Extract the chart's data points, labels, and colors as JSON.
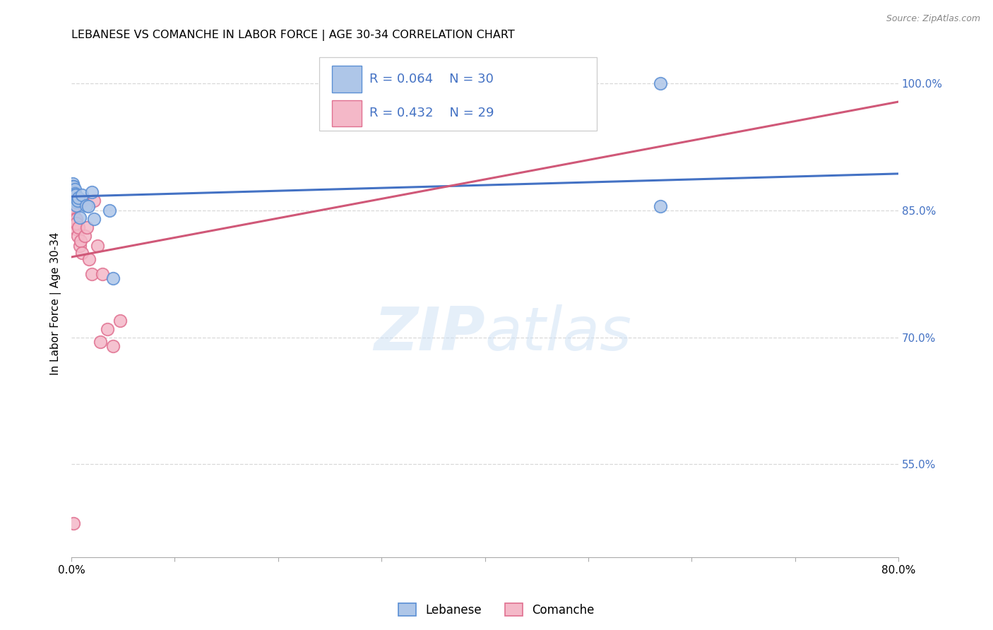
{
  "title": "LEBANESE VS COMANCHE IN LABOR FORCE | AGE 30-34 CORRELATION CHART",
  "source": "Source: ZipAtlas.com",
  "ylabel": "In Labor Force | Age 30-34",
  "xlim": [
    0.0,
    0.8
  ],
  "ylim": [
    0.44,
    1.04
  ],
  "xticks": [
    0.0,
    0.1,
    0.2,
    0.3,
    0.4,
    0.5,
    0.6,
    0.7,
    0.8
  ],
  "xticklabels": [
    "0.0%",
    "",
    "",
    "",
    "",
    "",
    "",
    "",
    "80.0%"
  ],
  "ytick_positions": [
    0.55,
    0.7,
    0.85,
    1.0
  ],
  "ytick_labels": [
    "55.0%",
    "70.0%",
    "85.0%",
    "100.0%"
  ],
  "legend_R_blue": "R = 0.064",
  "legend_N_blue": "N = 30",
  "legend_R_pink": "R = 0.432",
  "legend_N_pink": "N = 29",
  "blue_dot_color": "#aec6e8",
  "blue_edge_color": "#5b8fd4",
  "pink_dot_color": "#f4b8c8",
  "pink_edge_color": "#e07090",
  "blue_line_color": "#4472C4",
  "pink_line_color": "#d05878",
  "grid_color": "#d8d8d8",
  "blue_line": [
    0.0,
    0.8665,
    0.8,
    0.8935
  ],
  "pink_line": [
    0.0,
    0.795,
    0.8,
    0.9785
  ],
  "blue_x": [
    0.001,
    0.001,
    0.001,
    0.001,
    0.001,
    0.001,
    0.002,
    0.002,
    0.002,
    0.002,
    0.003,
    0.003,
    0.003,
    0.003,
    0.004,
    0.004,
    0.005,
    0.005,
    0.006,
    0.007,
    0.008,
    0.01,
    0.014,
    0.016,
    0.02,
    0.022,
    0.037,
    0.04,
    0.57,
    0.57
  ],
  "blue_y": [
    0.875,
    0.882,
    0.878,
    0.871,
    0.868,
    0.865,
    0.878,
    0.872,
    0.868,
    0.864,
    0.875,
    0.87,
    0.865,
    0.868,
    0.862,
    0.868,
    0.86,
    0.856,
    0.862,
    0.865,
    0.842,
    0.868,
    0.856,
    0.855,
    0.872,
    0.84,
    0.85,
    0.77,
    1.0,
    0.855
  ],
  "pink_x": [
    0.001,
    0.001,
    0.001,
    0.002,
    0.002,
    0.003,
    0.003,
    0.004,
    0.004,
    0.005,
    0.005,
    0.006,
    0.007,
    0.008,
    0.009,
    0.01,
    0.011,
    0.013,
    0.015,
    0.017,
    0.02,
    0.022,
    0.025,
    0.028,
    0.03,
    0.035,
    0.04,
    0.047,
    0.002
  ],
  "pink_y": [
    0.878,
    0.87,
    0.862,
    0.855,
    0.848,
    0.84,
    0.835,
    0.828,
    0.865,
    0.84,
    0.835,
    0.82,
    0.83,
    0.808,
    0.814,
    0.8,
    0.862,
    0.82,
    0.83,
    0.792,
    0.775,
    0.862,
    0.808,
    0.695,
    0.775,
    0.71,
    0.69,
    0.72,
    0.48
  ]
}
